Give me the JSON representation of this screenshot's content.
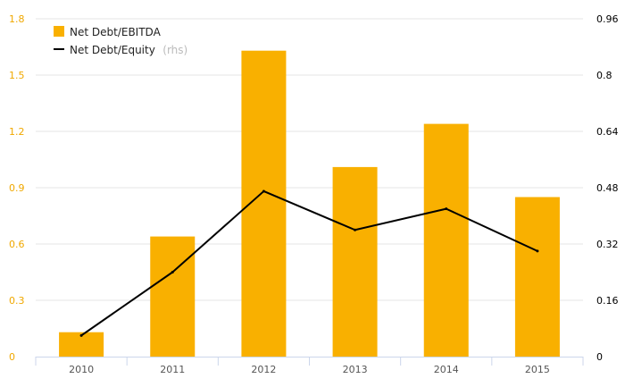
{
  "chart_data": {
    "type": "bar",
    "categories": [
      "2010",
      "2011",
      "2012",
      "2013",
      "2014",
      "2015"
    ],
    "series": [
      {
        "name": "Net Debt/EBITDA",
        "type": "bar",
        "axis": "left",
        "color": "#f9b000",
        "values": [
          0.13,
          0.64,
          1.63,
          1.01,
          1.24,
          0.85
        ]
      },
      {
        "name": "Net Debt/Equity",
        "name_suffix": "(rhs)",
        "type": "line",
        "axis": "right",
        "color": "#000000",
        "values": [
          0.06,
          0.24,
          0.47,
          0.36,
          0.42,
          0.3
        ]
      }
    ],
    "left_axis": {
      "ylim": [
        0,
        1.8
      ],
      "ticks": [
        "0",
        "0.3",
        "0.6",
        "0.9",
        "1.2",
        "1.5",
        "1.8"
      ],
      "color": "#f0a800"
    },
    "right_axis": {
      "ylim": [
        0,
        0.96
      ],
      "ticks": [
        "0",
        "0.16",
        "0.32",
        "0.48",
        "0.64",
        "0.8",
        "0.96"
      ],
      "color": "#000000"
    },
    "grid": true,
    "legend_position": "top-left"
  }
}
